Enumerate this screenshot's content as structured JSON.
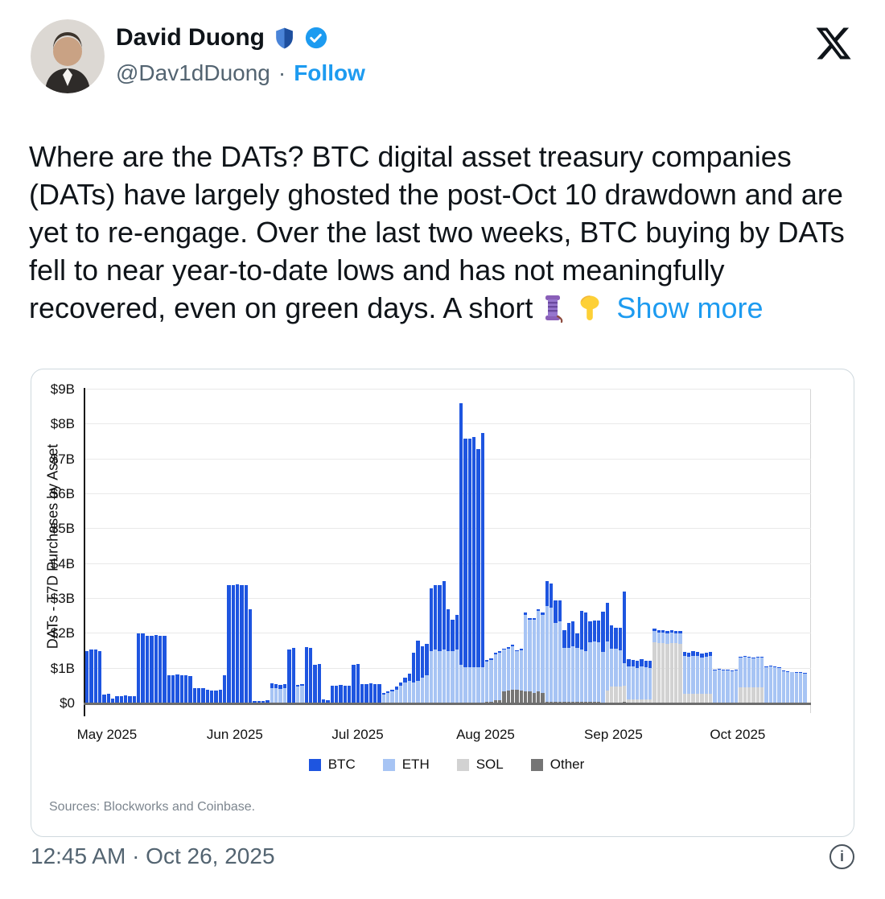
{
  "tweet": {
    "name": "David Duong",
    "handle": "@Dav1dDuong",
    "separator": "·",
    "follow_label": "Follow",
    "text_main": "Where are the DATs? BTC digital asset treasury companies (DATs) have largely ghosted the post-Oct 10 drawdown and are yet to re-engage. Over the last two weeks, BTC buying by DATs fell to near year-to-date lows and has not meaningfully recovered, even on green days.",
    "text_tail": "A short",
    "show_more": "Show more"
  },
  "footer": {
    "timestamp": "12:45 AM · Oct 26, 2025",
    "info_glyph": "i"
  },
  "chart": {
    "sources": "Sources: Blockworks and Coinbase."
  },
  "chart_data": {
    "type": "bar",
    "stacked": true,
    "title": "",
    "xlabel": "",
    "ylabel": "DATs - T7D Purchases by Asset",
    "unit": "USD billions",
    "ylim": [
      0,
      9
    ],
    "grid": "horizontal",
    "legend_position": "bottom-center",
    "y_ticks": [
      "$0",
      "$1B",
      "$2B",
      "$3B",
      "$4B",
      "$5B",
      "$6B",
      "$7B",
      "$8B",
      "$9B"
    ],
    "x_ticks": [
      "May 2025",
      "Jun 2025",
      "Jul 2025",
      "Aug 2025",
      "Sep 2025",
      "Oct 2025"
    ],
    "x_tick_pos_pct": [
      3.0,
      20.7,
      37.7,
      55.4,
      73.1,
      90.3
    ],
    "legend": [
      {
        "label": "BTC",
        "color": "#1e55e0"
      },
      {
        "label": "ETH",
        "color": "#a7c4f4"
      },
      {
        "label": "SOL",
        "color": "#d2d2d2"
      },
      {
        "label": "Other",
        "color": "#757575"
      }
    ],
    "series_order": [
      "BTC",
      "ETH",
      "SOL",
      "Other"
    ],
    "stack_order_bottom_to_top": [
      "Other",
      "SOL",
      "ETH",
      "BTC"
    ],
    "bars_format": "[BTC, ETH, SOL, Other] in $B per day",
    "bars": [
      [
        1.5,
        0,
        0,
        0
      ],
      [
        1.55,
        0,
        0,
        0
      ],
      [
        1.55,
        0,
        0,
        0
      ],
      [
        1.5,
        0,
        0,
        0
      ],
      [
        0.25,
        0,
        0,
        0
      ],
      [
        0.28,
        0,
        0,
        0
      ],
      [
        0.15,
        0,
        0,
        0
      ],
      [
        0.2,
        0,
        0,
        0
      ],
      [
        0.2,
        0,
        0,
        0
      ],
      [
        0.22,
        0,
        0,
        0
      ],
      [
        0.2,
        0,
        0,
        0
      ],
      [
        0.2,
        0,
        0,
        0
      ],
      [
        2.0,
        0,
        0,
        0
      ],
      [
        2.0,
        0,
        0,
        0
      ],
      [
        1.95,
        0,
        0,
        0
      ],
      [
        1.95,
        0,
        0,
        0
      ],
      [
        1.97,
        0,
        0,
        0
      ],
      [
        1.95,
        0,
        0,
        0
      ],
      [
        1.95,
        0,
        0,
        0
      ],
      [
        0.8,
        0,
        0,
        0
      ],
      [
        0.8,
        0,
        0,
        0
      ],
      [
        0.82,
        0,
        0,
        0
      ],
      [
        0.8,
        0,
        0,
        0
      ],
      [
        0.8,
        0,
        0,
        0
      ],
      [
        0.78,
        0,
        0,
        0
      ],
      [
        0.45,
        0,
        0,
        0
      ],
      [
        0.45,
        0,
        0,
        0
      ],
      [
        0.45,
        0,
        0,
        0
      ],
      [
        0.4,
        0,
        0,
        0
      ],
      [
        0.38,
        0,
        0,
        0
      ],
      [
        0.38,
        0,
        0,
        0
      ],
      [
        0.4,
        0,
        0,
        0
      ],
      [
        0.8,
        0,
        0,
        0
      ],
      [
        3.4,
        0,
        0,
        0
      ],
      [
        3.4,
        0,
        0,
        0
      ],
      [
        3.42,
        0,
        0,
        0
      ],
      [
        3.4,
        0,
        0,
        0
      ],
      [
        3.4,
        0,
        0,
        0
      ],
      [
        2.7,
        0,
        0,
        0
      ],
      [
        0.07,
        0,
        0,
        0
      ],
      [
        0.08,
        0,
        0,
        0
      ],
      [
        0.07,
        0,
        0,
        0
      ],
      [
        0.1,
        0,
        0,
        0
      ],
      [
        0.12,
        0.45,
        0,
        0
      ],
      [
        0.1,
        0.45,
        0,
        0
      ],
      [
        0.12,
        0.42,
        0,
        0
      ],
      [
        0.1,
        0.45,
        0,
        0
      ],
      [
        1.55,
        0,
        0,
        0
      ],
      [
        1.6,
        0,
        0,
        0
      ],
      [
        0.05,
        0.48,
        0,
        0
      ],
      [
        0.05,
        0.5,
        0,
        0
      ],
      [
        1.62,
        0,
        0,
        0
      ],
      [
        1.6,
        0,
        0,
        0
      ],
      [
        1.1,
        0,
        0,
        0
      ],
      [
        1.12,
        0,
        0,
        0
      ],
      [
        0.12,
        0,
        0,
        0
      ],
      [
        0.1,
        0,
        0,
        0
      ],
      [
        0.5,
        0,
        0,
        0
      ],
      [
        0.5,
        0,
        0,
        0
      ],
      [
        0.52,
        0,
        0,
        0
      ],
      [
        0.5,
        0,
        0,
        0
      ],
      [
        0.5,
        0,
        0,
        0
      ],
      [
        1.1,
        0,
        0,
        0
      ],
      [
        1.12,
        0,
        0,
        0
      ],
      [
        0.55,
        0,
        0,
        0
      ],
      [
        0.55,
        0,
        0,
        0
      ],
      [
        0.57,
        0,
        0,
        0
      ],
      [
        0.55,
        0,
        0,
        0
      ],
      [
        0.55,
        0,
        0,
        0
      ],
      [
        0.05,
        0.25,
        0,
        0
      ],
      [
        0.05,
        0.3,
        0,
        0
      ],
      [
        0.05,
        0.35,
        0,
        0
      ],
      [
        0.08,
        0.4,
        0,
        0
      ],
      [
        0.1,
        0.5,
        0,
        0
      ],
      [
        0.15,
        0.6,
        0,
        0
      ],
      [
        0.2,
        0.65,
        0,
        0
      ],
      [
        0.85,
        0.6,
        0,
        0
      ],
      [
        1.15,
        0.65,
        0,
        0
      ],
      [
        0.9,
        0.75,
        0,
        0
      ],
      [
        0.9,
        0.8,
        0,
        0
      ],
      [
        1.8,
        1.5,
        0,
        0
      ],
      [
        1.85,
        1.55,
        0,
        0
      ],
      [
        1.9,
        1.5,
        0,
        0
      ],
      [
        1.95,
        1.55,
        0,
        0
      ],
      [
        1.2,
        1.5,
        0,
        0
      ],
      [
        0.9,
        1.5,
        0,
        0
      ],
      [
        1.0,
        1.55,
        0,
        0
      ],
      [
        7.5,
        1.1,
        0,
        0
      ],
      [
        6.55,
        1.05,
        0,
        0
      ],
      [
        6.55,
        1.05,
        0,
        0
      ],
      [
        6.6,
        1.05,
        0,
        0
      ],
      [
        6.25,
        1.05,
        0,
        0
      ],
      [
        6.7,
        1.05,
        0,
        0
      ],
      [
        0.05,
        1.15,
        0,
        0.05
      ],
      [
        0.05,
        1.2,
        0,
        0.05
      ],
      [
        0.05,
        1.3,
        0,
        0.1
      ],
      [
        0.05,
        1.35,
        0,
        0.1
      ],
      [
        0.03,
        1.2,
        0,
        0.35
      ],
      [
        0.03,
        1.2,
        0,
        0.38
      ],
      [
        0.03,
        1.25,
        0,
        0.4
      ],
      [
        0.03,
        1.1,
        0,
        0.4
      ],
      [
        0.03,
        1.15,
        0,
        0.38
      ],
      [
        0.05,
        2.2,
        0,
        0.35
      ],
      [
        0.05,
        2.05,
        0,
        0.35
      ],
      [
        0.05,
        2.1,
        0,
        0.3
      ],
      [
        0.05,
        2.3,
        0,
        0.35
      ],
      [
        0.05,
        2.25,
        0,
        0.3
      ],
      [
        0.7,
        2.75,
        0,
        0.05
      ],
      [
        0.7,
        2.7,
        0,
        0.05
      ],
      [
        0.65,
        2.25,
        0,
        0.05
      ],
      [
        0.6,
        2.3,
        0,
        0.05
      ],
      [
        0.5,
        1.55,
        0,
        0.05
      ],
      [
        0.7,
        1.55,
        0,
        0.05
      ],
      [
        0.7,
        1.6,
        0,
        0.05
      ],
      [
        0.4,
        1.55,
        0,
        0.05
      ],
      [
        1.1,
        1.5,
        0,
        0.05
      ],
      [
        1.1,
        1.45,
        0,
        0.05
      ],
      [
        0.6,
        1.7,
        0,
        0.05
      ],
      [
        0.6,
        1.72,
        0,
        0.05
      ],
      [
        0.62,
        1.7,
        0,
        0.05
      ],
      [
        1.15,
        1.45,
        0,
        0.03
      ],
      [
        1.1,
        1.4,
        0.35,
        0.03
      ],
      [
        0.65,
        1.1,
        0.45,
        0.03
      ],
      [
        0.6,
        1.1,
        0.45,
        0.03
      ],
      [
        0.65,
        1.05,
        0.45,
        0.03
      ],
      [
        2.05,
        0.65,
        0.45,
        0.05
      ],
      [
        0.2,
        0.95,
        0.1,
        0.02
      ],
      [
        0.18,
        0.95,
        0.1,
        0.02
      ],
      [
        0.2,
        0.9,
        0.1,
        0.02
      ],
      [
        0.2,
        0.95,
        0.1,
        0.02
      ],
      [
        0.18,
        0.92,
        0.1,
        0.02
      ],
      [
        0.2,
        0.9,
        0.1,
        0.02
      ],
      [
        0.07,
        0.32,
        1.72,
        0.03
      ],
      [
        0.07,
        0.3,
        1.7,
        0.03
      ],
      [
        0.06,
        0.3,
        1.7,
        0.03
      ],
      [
        0.07,
        0.3,
        1.68,
        0.03
      ],
      [
        0.06,
        0.3,
        1.7,
        0.03
      ],
      [
        0.07,
        0.28,
        1.7,
        0.03
      ],
      [
        0.06,
        0.3,
        1.68,
        0.03
      ],
      [
        0.1,
        1.1,
        0.25,
        0.02
      ],
      [
        0.1,
        1.08,
        0.25,
        0.02
      ],
      [
        0.12,
        1.1,
        0.25,
        0.02
      ],
      [
        0.1,
        1.1,
        0.25,
        0.02
      ],
      [
        0.1,
        1.05,
        0.25,
        0.02
      ],
      [
        0.1,
        1.08,
        0.25,
        0.02
      ],
      [
        0.1,
        1.1,
        0.25,
        0.02
      ],
      [
        0.02,
        0.93,
        0,
        0.02
      ],
      [
        0.02,
        0.95,
        0,
        0.02
      ],
      [
        0.02,
        0.92,
        0,
        0.02
      ],
      [
        0.02,
        0.93,
        0,
        0.02
      ],
      [
        0.02,
        0.9,
        0,
        0.02
      ],
      [
        0.02,
        0.92,
        0,
        0.02
      ],
      [
        0.02,
        0.85,
        0.45,
        0.02
      ],
      [
        0.02,
        0.87,
        0.45,
        0.02
      ],
      [
        0.02,
        0.85,
        0.45,
        0.02
      ],
      [
        0.02,
        0.83,
        0.45,
        0.02
      ],
      [
        0.02,
        0.85,
        0.45,
        0.02
      ],
      [
        0.02,
        0.84,
        0.45,
        0.02
      ],
      [
        0.02,
        1.03,
        0,
        0.02
      ],
      [
        0.02,
        1.05,
        0,
        0.02
      ],
      [
        0.02,
        1.02,
        0,
        0.02
      ],
      [
        0.02,
        1.0,
        0,
        0.02
      ],
      [
        0.02,
        0.9,
        0,
        0.02
      ],
      [
        0.02,
        0.88,
        0,
        0.02
      ],
      [
        0.02,
        0.87,
        0,
        0.02
      ],
      [
        0.02,
        0.86,
        0,
        0.02
      ],
      [
        0.02,
        0.85,
        0,
        0.02
      ],
      [
        0.02,
        0.84,
        0,
        0.02
      ]
    ]
  }
}
